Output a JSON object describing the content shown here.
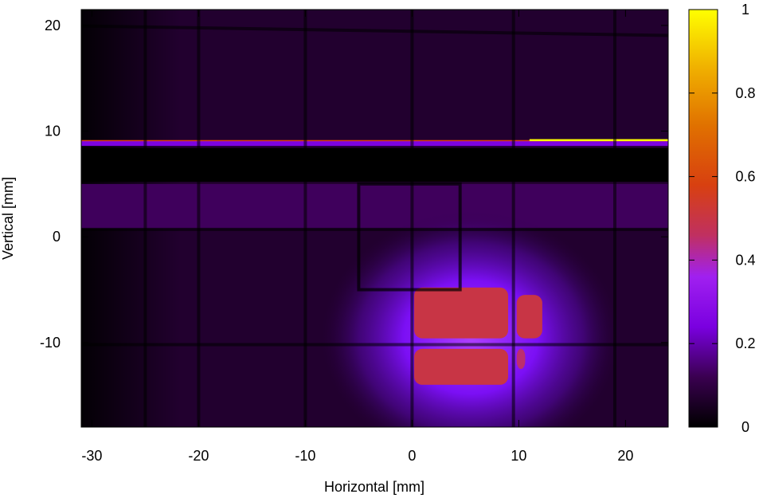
{
  "chart_data": {
    "type": "heatmap",
    "xlabel": "Horizontal [mm]",
    "ylabel": "Vertical [mm]",
    "xlim": [
      -31,
      24
    ],
    "ylim": [
      -18,
      21.5
    ],
    "x_ticks": [
      -30,
      -20,
      -10,
      0,
      10,
      20
    ],
    "y_ticks": [
      -10,
      0,
      10,
      20
    ],
    "colorbar": {
      "range": [
        0,
        1
      ],
      "ticks": [
        0,
        0.2,
        0.4,
        0.6,
        0.8,
        1
      ],
      "tick_labels": [
        "0",
        "0.2",
        "0.4",
        "0.6",
        "0.8",
        "1"
      ],
      "colormap": [
        "#000000",
        "#3a0050",
        "#7a00e0",
        "#a020f0",
        "#c03060",
        "#d84010",
        "#e07000",
        "#f0b000",
        "#ffff00"
      ]
    },
    "background_intensity": 0.07,
    "bright_strip": {
      "y_range": [
        8.6,
        9.1
      ],
      "value": 0.25
    },
    "top_edge_line": {
      "y": 9.15,
      "x_range": [
        11,
        24
      ],
      "value": 1.0
    },
    "dark_band": {
      "y_range": [
        5.2,
        8.4
      ],
      "value": 0.0
    },
    "lighter_band": {
      "y_range": [
        0.8,
        5.0
      ],
      "value": 0.13
    },
    "beam_spot": {
      "center_x": 5.5,
      "center_y": -9.5,
      "halo_radius": 14,
      "halo_value": 0.22,
      "core_regions": [
        {
          "x_range": [
            0.2,
            9.0
          ],
          "y_range": [
            -9.6,
            -4.8
          ],
          "value": 0.5
        },
        {
          "x_range": [
            0.2,
            9.0
          ],
          "y_range": [
            -14.0,
            -10.6
          ],
          "value": 0.5
        },
        {
          "x_range": [
            9.8,
            12.2
          ],
          "y_range": [
            -9.6,
            -5.5
          ],
          "value": 0.5
        },
        {
          "x_range": [
            9.8,
            10.6
          ],
          "y_range": [
            -12.5,
            -10.6
          ],
          "value": 0.45
        }
      ]
    },
    "grid_wires_vertical_x": [
      -25,
      -20,
      -10,
      0,
      9.5,
      19
    ],
    "grid_wires_horizontal_y": [
      19.5,
      0.7,
      -10.2
    ],
    "square_outline": {
      "x_range": [
        -5,
        4.5
      ],
      "y_range": [
        -5,
        5
      ]
    }
  }
}
